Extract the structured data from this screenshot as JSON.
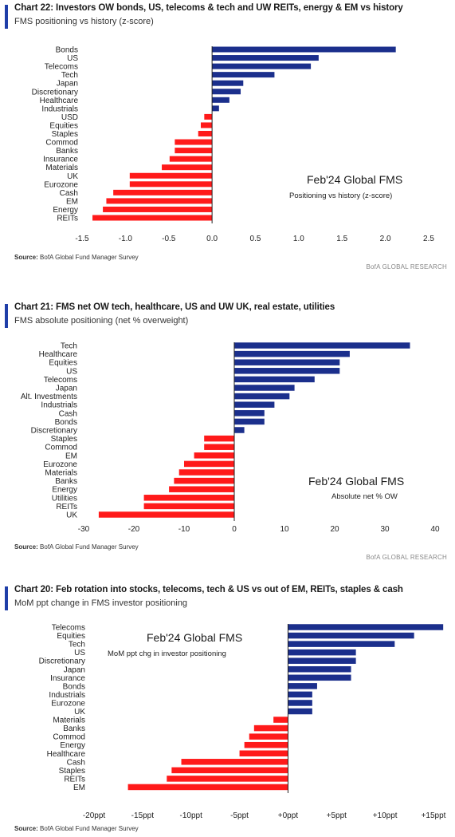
{
  "charts": [
    {
      "title": "Chart 22: Investors OW bonds, US, telecoms & tech and UW REITs, energy & EM vs history",
      "subtitle": "FMS positioning vs history (z-score)",
      "annotation_title": "Feb'24 Global FMS",
      "annotation_sub": "Positioning vs history (z-score)",
      "source_label": "Source:",
      "source_text": "BofA Global Fund Manager Survey",
      "brand": "BofA GLOBAL RESEARCH"
    },
    {
      "title": "Chart 21: FMS net OW tech, healthcare, US and UW UK, real estate, utilities",
      "subtitle": "FMS absolute positioning (net % overweight)",
      "annotation_title": "Feb'24 Global FMS",
      "annotation_sub": "Absolute net % OW",
      "source_label": "Source:",
      "source_text": "BofA Global Fund Manager Survey",
      "brand": "BofA GLOBAL RESEARCH"
    },
    {
      "title": "Chart 20: Feb rotation into stocks, telecoms, tech & US vs out of EM, REITs, staples & cash",
      "subtitle": "MoM ppt change in FMS investor positioning",
      "annotation_title": "Feb'24 Global FMS",
      "annotation_sub": "MoM ppt chg in investor positioning",
      "source_label": "Source:",
      "source_text": "BofA Global Fund Manager Survey",
      "brand": ""
    }
  ],
  "colors": {
    "positive": "#1b2f8c",
    "negative": "#ff1a1a",
    "accent": "#1f3ea8"
  },
  "chart_data": [
    {
      "type": "bar",
      "orientation": "horizontal",
      "title": "Chart 22: Investors OW bonds, US, telecoms & tech and UW REITs, energy & EM vs history",
      "subtitle": "FMS positioning vs history (z-score)",
      "categories": [
        "Bonds",
        "US",
        "Telecoms",
        "Tech",
        "Japan",
        "Discretionary",
        "Healthcare",
        "Industrials",
        "USD",
        "Equities",
        "Staples",
        "Commod",
        "Banks",
        "Insurance",
        "Materials",
        "UK",
        "Eurozone",
        "Cash",
        "EM",
        "Energy",
        "REITs"
      ],
      "values": [
        2.12,
        1.23,
        1.14,
        0.72,
        0.36,
        0.33,
        0.2,
        0.08,
        -0.09,
        -0.13,
        -0.16,
        -0.43,
        -0.43,
        -0.49,
        -0.58,
        -0.95,
        -0.95,
        -1.14,
        -1.22,
        -1.26,
        -1.38
      ],
      "xlim": [
        -1.5,
        2.5
      ],
      "xticks": [
        -1.5,
        -1.0,
        -0.5,
        0.0,
        0.5,
        1.0,
        1.5,
        2.0,
        2.5
      ],
      "xtick_labels": [
        "-1.5",
        "-1.0",
        "-0.5",
        "0.0",
        "0.5",
        "1.0",
        "1.5",
        "2.0",
        "2.5"
      ],
      "grid": false
    },
    {
      "type": "bar",
      "orientation": "horizontal",
      "title": "Chart 21: FMS net OW tech, healthcare, US and UW UK, real estate, utilities",
      "subtitle": "FMS absolute positioning (net % overweight)",
      "categories": [
        "Tech",
        "Healthcare",
        "Equities",
        "US",
        "Telecoms",
        "Japan",
        "Alt. Investments",
        "Industrials",
        "Cash",
        "Bonds",
        "Discretionary",
        "Staples",
        "Commod",
        "EM",
        "Eurozone",
        "Materials",
        "Banks",
        "Energy",
        "Utilities",
        "REITs",
        "UK"
      ],
      "values": [
        35,
        23,
        21,
        21,
        16,
        12,
        11,
        8,
        6,
        6,
        2,
        -6,
        -6,
        -8,
        -10,
        -11,
        -12,
        -13,
        -18,
        -18,
        -27
      ],
      "xlim": [
        -30,
        40
      ],
      "xticks": [
        -30,
        -20,
        -10,
        0,
        10,
        20,
        30,
        40
      ],
      "xtick_labels": [
        "-30",
        "-20",
        "-10",
        "0",
        "10",
        "20",
        "30",
        "40"
      ],
      "grid": false
    },
    {
      "type": "bar",
      "orientation": "horizontal",
      "title": "Chart 20: Feb rotation into stocks, telecoms, tech & US vs out of EM, REITs, staples & cash",
      "subtitle": "MoM ppt change in FMS investor positioning",
      "categories": [
        "Telecoms",
        "Equities",
        "Tech",
        "US",
        "Discretionary",
        "Japan",
        "Insurance",
        "Bonds",
        "Industrials",
        "Eurozone",
        "UK",
        "Materials",
        "Banks",
        "Commod",
        "Energy",
        "Healthcare",
        "Cash",
        "Staples",
        "REITs",
        "EM"
      ],
      "values": [
        16,
        13,
        11,
        7,
        7,
        6.5,
        6.5,
        3,
        2.5,
        2.5,
        2.5,
        -1.5,
        -3.5,
        -4,
        -4.5,
        -5,
        -11,
        -12,
        -12.5,
        -16.5
      ],
      "xlim": [
        -20,
        15
      ],
      "xticks": [
        -20,
        -15,
        -10,
        -5,
        0,
        5,
        10,
        15
      ],
      "xtick_labels": [
        "-20ppt",
        "-15ppt",
        "-10ppt",
        "-5ppt",
        "+0ppt",
        "+5ppt",
        "+10ppt",
        "+15ppt"
      ],
      "grid": false
    }
  ]
}
